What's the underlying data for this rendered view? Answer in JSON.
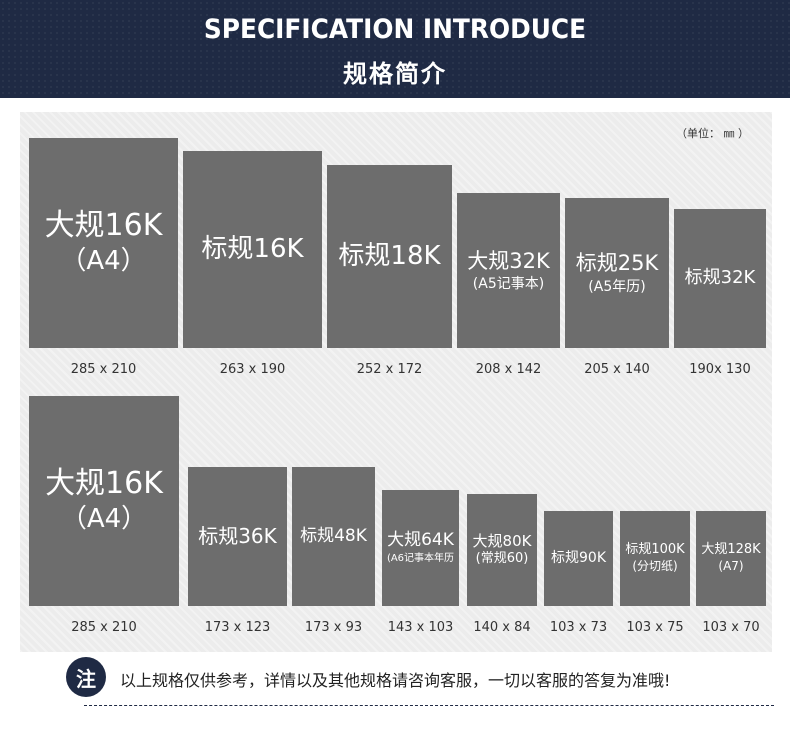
{
  "header": {
    "title_en": "SPECIFICATION INTRODUCE",
    "title_cn": "规格简介"
  },
  "unit_label": "（单位： ㎜ ）",
  "row1": [
    {
      "l1": "大规16K",
      "l2": "（A4）",
      "dim": "285 x 210"
    },
    {
      "l1": "标规16K",
      "l2": "",
      "dim": "263 x 190"
    },
    {
      "l1": "标规18K",
      "l2": "",
      "dim": "252 x 172"
    },
    {
      "l1": "大规32K",
      "l2": "(A5记事本)",
      "dim": "208 x 142"
    },
    {
      "l1": "标规25K",
      "l2": "(A5年历)",
      "dim": "205 x 140"
    },
    {
      "l1": "标规32K",
      "l2": "",
      "dim": "190x 130"
    }
  ],
  "row2": [
    {
      "l1": "大规16K",
      "l2": "（A4）",
      "dim": "285 x 210"
    },
    {
      "l1": "标规36K",
      "l2": "",
      "dim": "173 x 123"
    },
    {
      "l1": "标规48K",
      "l2": "",
      "dim": "173 x 93"
    },
    {
      "l1": "大规64K",
      "l2": "(A6记事本年历",
      "dim": "143 x 103"
    },
    {
      "l1": "大规80K",
      "l2": "(常规60)",
      "dim": "140 x 84"
    },
    {
      "l1": "标规90K",
      "l2": "",
      "dim": "103 x 73"
    },
    {
      "l1": "标规100K",
      "l2": "(分切纸)",
      "dim": "103 x 75"
    },
    {
      "l1": "大规128K",
      "l2": "(A7)",
      "dim": "103 x 70"
    }
  ],
  "note": {
    "badge": "注",
    "text": "以上规格仅供参考，详情以及其他规格请咨询客服，一切以客服的答复为准哦!"
  },
  "colors": {
    "header_bg": "#1f2a44",
    "box_fill": "#6d6d6d",
    "panel_bg": "#ececec"
  }
}
